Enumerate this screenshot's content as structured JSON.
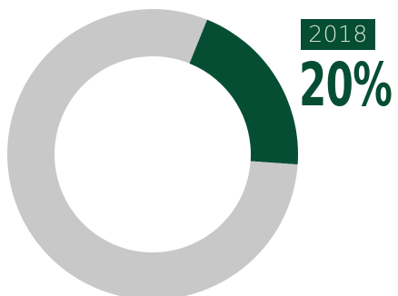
{
  "chart_data": {
    "type": "pie",
    "style": "donut",
    "year_label": "2018",
    "value_label": "20%",
    "slices": [
      {
        "value": 20,
        "color": "#064e33"
      },
      {
        "value": 80,
        "color": "#c8c8c8"
      }
    ]
  },
  "colors": {
    "accent": "#064e33",
    "badge_bg": "#064e33",
    "badge_text": "#d6e2da",
    "remainder": "#c8c8c8"
  }
}
